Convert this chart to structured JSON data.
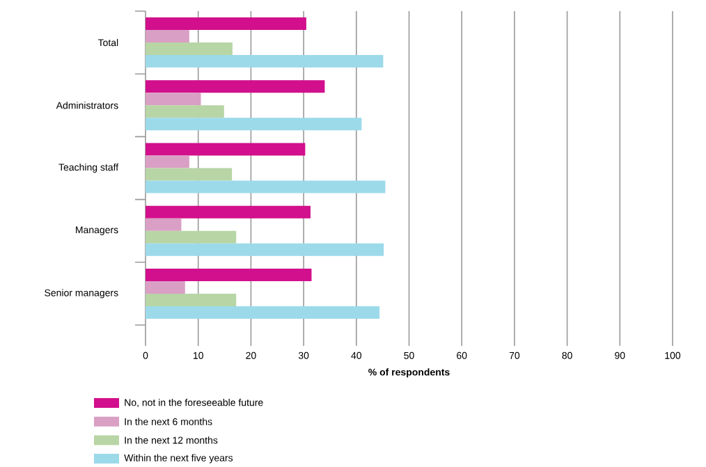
{
  "chart_data": {
    "type": "bar",
    "orientation": "horizontal",
    "xlabel": "% of respondents",
    "categories": [
      "Total",
      "Administrators",
      "Teaching staff",
      "Managers",
      "Senior managers"
    ],
    "series": [
      {
        "name": "No, not in the foreseeable future",
        "color": "#d20f8c",
        "values": [
          30.5,
          34.0,
          30.3,
          31.3,
          31.5
        ]
      },
      {
        "name": "In the next 6 months",
        "color": "#da9fc4",
        "values": [
          8.3,
          10.5,
          8.3,
          6.8,
          7.5
        ]
      },
      {
        "name": "In the next 12 months",
        "color": "#b8d5a5",
        "values": [
          16.5,
          14.9,
          16.4,
          17.2,
          17.2
        ]
      },
      {
        "name": "Within the next five years",
        "color": "#9cdaea",
        "values": [
          45.1,
          41.0,
          45.5,
          45.2,
          44.4
        ]
      }
    ],
    "xlim": [
      0,
      100
    ],
    "xticks": [
      0,
      10,
      20,
      30,
      40,
      50,
      60,
      70,
      80,
      90,
      100
    ],
    "grid": "x",
    "legend": "bottom left"
  }
}
